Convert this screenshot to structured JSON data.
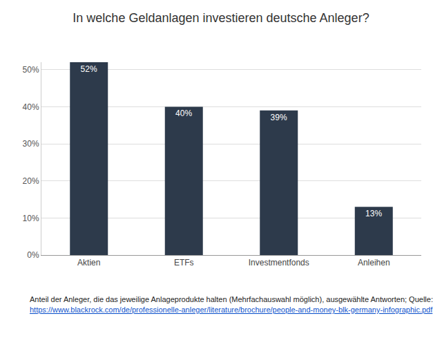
{
  "chart_data": {
    "type": "bar",
    "title": "In welche Geldanlagen investieren deutsche Anleger?",
    "categories": [
      "Aktien",
      "ETFs",
      "Investmentfonds",
      "Anleihen"
    ],
    "values": [
      52,
      40,
      39,
      13
    ],
    "value_labels": [
      "52%",
      "40%",
      "39%",
      "13%"
    ],
    "color": "#2d3a4b",
    "ylim": [
      0,
      52
    ],
    "yticks": [
      {
        "value": 0,
        "label": "0%"
      },
      {
        "value": 10,
        "label": "10%"
      },
      {
        "value": 20,
        "label": "20%"
      },
      {
        "value": 30,
        "label": "30%"
      },
      {
        "value": 40,
        "label": "40%"
      },
      {
        "value": 50,
        "label": "50%"
      }
    ],
    "grid": true,
    "data_labels": true,
    "annotations": [
      "Anteil der Anleger, die das jeweilige Anlageprodukte halten (Mehrfachauswahl möglich), ausgewählte Antworten; Quelle:",
      "https://www.blackrock.com/de/professionelle-anleger/literature/brochure/people-and-money-blk-germany-infographic.pdf"
    ]
  }
}
